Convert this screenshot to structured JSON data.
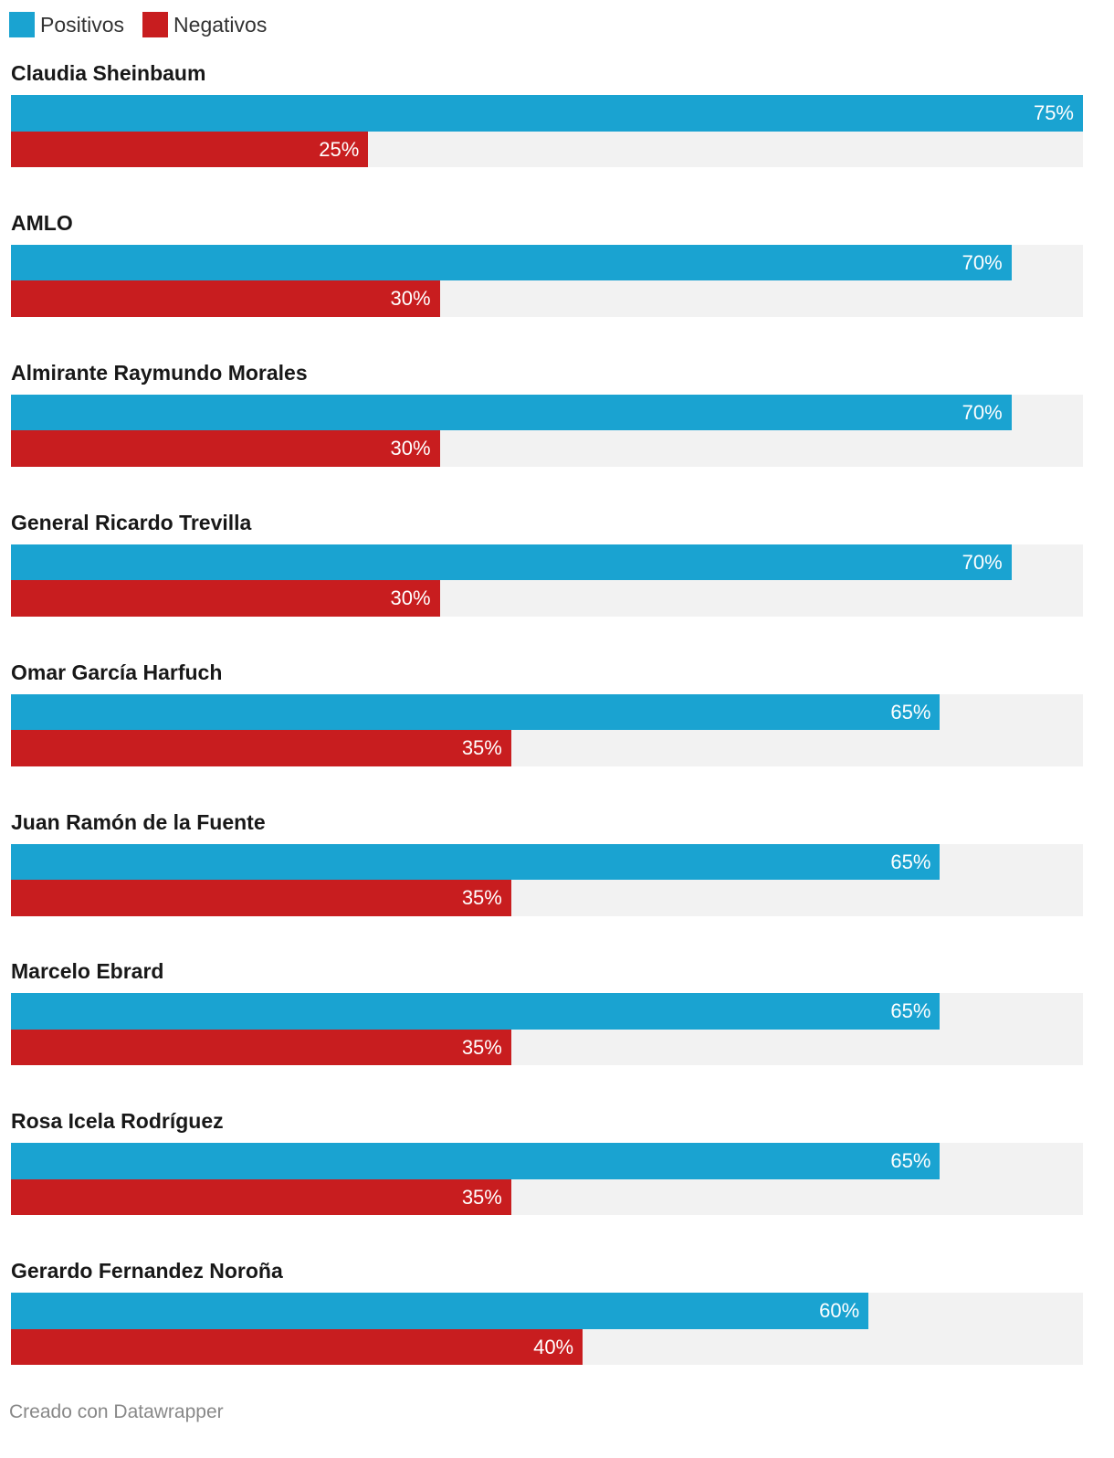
{
  "legend": [
    {
      "label": "Positivos",
      "color": "#1aa3d1"
    },
    {
      "label": "Negativos",
      "color": "#c81d1f"
    }
  ],
  "footer": "Creado con Datawrapper",
  "chart_data": {
    "type": "bar",
    "orientation": "horizontal",
    "xlim": [
      0,
      75
    ],
    "series": [
      {
        "name": "Positivos",
        "color": "#1aa3d1",
        "values": [
          75,
          70,
          70,
          70,
          65,
          65,
          65,
          65,
          60
        ]
      },
      {
        "name": "Negativos",
        "color": "#c81d1f",
        "values": [
          25,
          30,
          30,
          30,
          35,
          35,
          35,
          35,
          40
        ]
      }
    ],
    "categories": [
      "Claudia Sheinbaum",
      "AMLO",
      "Almirante Raymundo Morales",
      "General Ricardo Trevilla",
      "Omar García Harfuch",
      "Juan Ramón de la Fuente",
      "Marcelo Ebrard",
      "Rosa Icela Rodríguez",
      "Gerardo Fernandez Noroña"
    ],
    "value_suffix": "%",
    "legend_position": "top-left"
  }
}
